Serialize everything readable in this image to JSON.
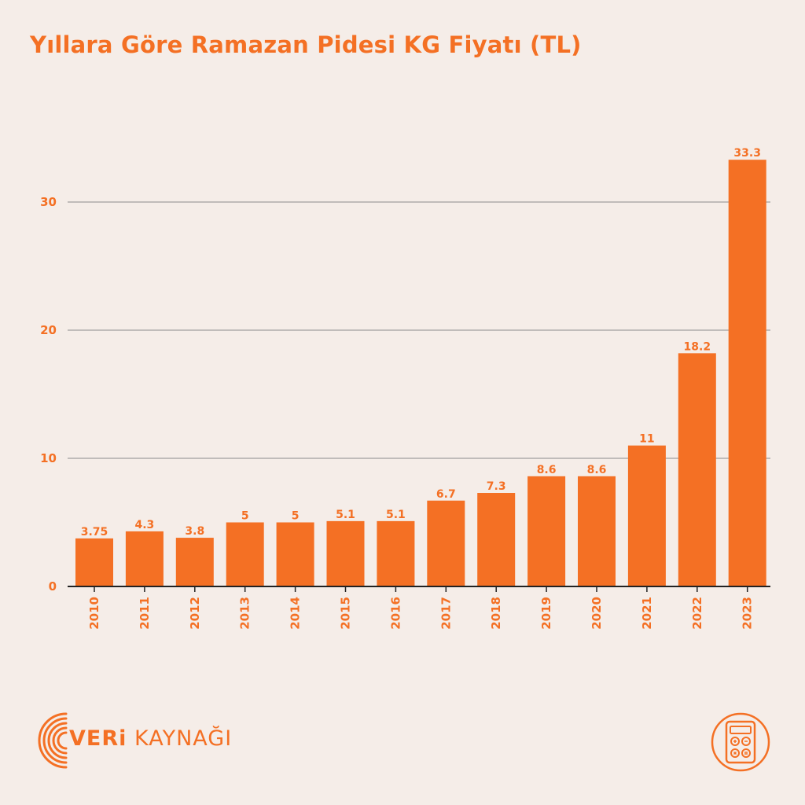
{
  "title": "Yıllara Göre Ramazan Pidesi KG Fiyatı (TL)",
  "brand": {
    "part1": "VERi",
    "part2": "KAYNAĞI"
  },
  "colors": {
    "bar": "#f47024",
    "background": "#f5ede8",
    "grid": "#8c8c8c",
    "axis": "#222222"
  },
  "icons": {
    "logo": "concentric-arc-logo-icon",
    "calculator": "calculator-icon"
  },
  "chart_data": {
    "type": "bar",
    "categories": [
      "2010",
      "2011",
      "2012",
      "2013",
      "2014",
      "2015",
      "2016",
      "2017",
      "2018",
      "2019",
      "2020",
      "2021",
      "2022",
      "2023"
    ],
    "values": [
      3.75,
      4.3,
      3.8,
      5,
      5,
      5.1,
      5.1,
      6.7,
      7.3,
      8.6,
      8.6,
      11,
      18.2,
      33.3
    ],
    "value_labels": [
      "3.75",
      "4.3",
      "3.8",
      "5",
      "5",
      "5.1",
      "5.1",
      "6.7",
      "7.3",
      "8.6",
      "8.6",
      "11",
      "18.2",
      "33.3"
    ],
    "title": "Yıllara Göre Ramazan Pidesi KG Fiyatı (TL)",
    "xlabel": "",
    "ylabel": "",
    "ylim": [
      0,
      35
    ],
    "yticks": [
      0,
      10,
      20,
      30
    ],
    "grid": true,
    "x_tick_rotation": "vertical"
  }
}
